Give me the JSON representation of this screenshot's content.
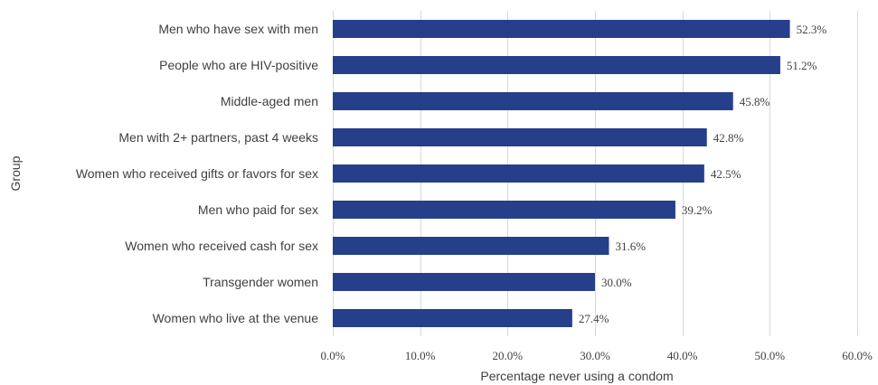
{
  "chart_data": {
    "type": "bar",
    "orientation": "horizontal",
    "categories": [
      "Men who have sex with men",
      "People who are HIV-positive",
      "Middle-aged men",
      "Men with 2+ partners, past 4 weeks",
      "Women who received gifts or favors for sex",
      "Men who paid for sex",
      "Women who received cash for sex",
      "Transgender women",
      "Women who live at the venue"
    ],
    "values": [
      52.3,
      51.2,
      45.8,
      42.8,
      42.5,
      39.2,
      31.6,
      30.0,
      27.4
    ],
    "data_labels": [
      "52.3%",
      "51.2%",
      "45.8%",
      "42.8%",
      "42.5%",
      "39.2%",
      "31.6%",
      "30.0%",
      "27.4%"
    ],
    "xlim": [
      0,
      60
    ],
    "xticks": [
      0,
      10,
      20,
      30,
      40,
      50,
      60
    ],
    "xtick_labels": [
      "0.0%",
      "10.0%",
      "20.0%",
      "30.0%",
      "40.0%",
      "50.0%",
      "60.0%"
    ],
    "xlabel": "Percentage never using a condom",
    "ylabel": "Group",
    "title": "",
    "grid": "vertical",
    "legend": "none",
    "bar_color": "#253F8B"
  }
}
